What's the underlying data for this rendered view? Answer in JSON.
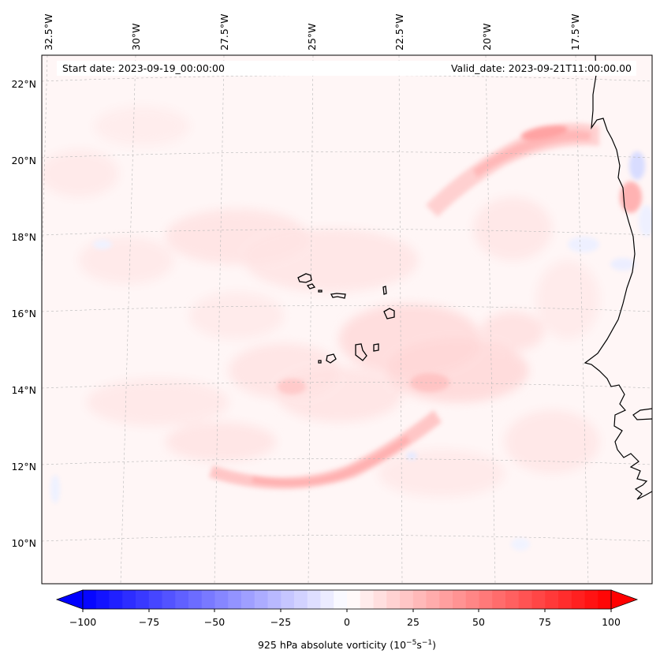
{
  "map": {
    "start_date": "Start date: 2023-09-19_00:00:00",
    "valid_date": "Valid_date: 2023-09-21T11:00:00.00",
    "lon_labels": [
      "32.5°W",
      "30°W",
      "27.5°W",
      "25°W",
      "22.5°W",
      "20°W",
      "17.5°W"
    ],
    "lat_labels": [
      "22°N",
      "20°N",
      "18°N",
      "16°N",
      "14°N",
      "12°N",
      "10°N"
    ],
    "field": "925 hPa absolute vorticity",
    "extent": {
      "lon_min": -33.0,
      "lon_max": -15.2,
      "lat_min": 8.8,
      "lat_max": 22.8
    }
  },
  "colorbar": {
    "ticks": [
      "−100",
      "−75",
      "−50",
      "−25",
      "0",
      "25",
      "50",
      "75",
      "100"
    ],
    "label_main": "925 hPa absolute vorticity (10",
    "label_sup1": "−5",
    "label_mid": "s",
    "label_sup2": "−1",
    "label_end": ")",
    "min": -100,
    "max": 100,
    "colors": {
      "negative": "#0000ff",
      "zero": "#ffffff",
      "positive": "#ff0000"
    }
  }
}
